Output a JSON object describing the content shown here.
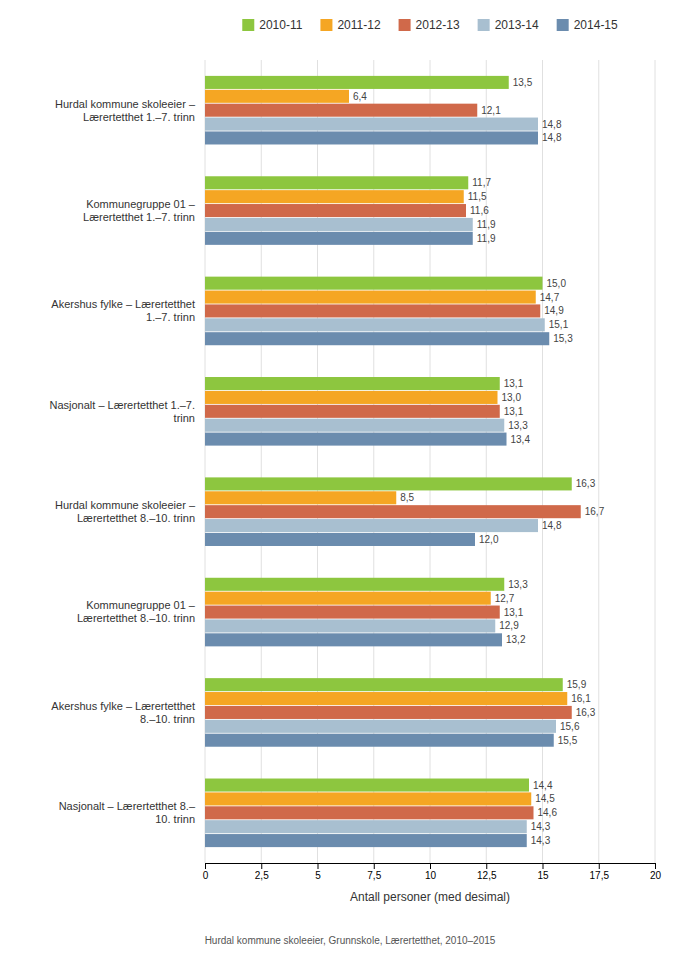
{
  "chart_data": {
    "type": "bar",
    "orientation": "horizontal",
    "categories": [
      "Hurdal kommune skoleeier –\nLærertetthet 1.–7. trinn",
      "Kommunegruppe 01 –\nLærertetthet 1.–7. trinn",
      "Akershus fylke – Lærertetthet\n1.–7. trinn",
      "Nasjonalt – Lærertetthet 1.–7.\ntrinn",
      "Hurdal kommune skoleeier –\nLærertetthet 8.–10. trinn",
      "Kommunegruppe 01 –\nLærertetthet 8.–10. trinn",
      "Akershus fylke – Lærertetthet\n8.–10. trinn",
      "Nasjonalt – Lærertetthet 8.–\n10. trinn"
    ],
    "series": [
      {
        "name": "2010-11",
        "color": "#8DC63F",
        "values": [
          13.5,
          11.7,
          15.0,
          13.1,
          16.3,
          13.3,
          15.9,
          14.4
        ],
        "value_labels": [
          "13,5",
          "11,7",
          "15,0",
          "13,1",
          "16,3",
          "13,3",
          "15,9",
          "14,4"
        ]
      },
      {
        "name": "2011-12",
        "color": "#F5A623",
        "values": [
          6.4,
          11.5,
          14.7,
          13.0,
          8.5,
          12.7,
          16.1,
          14.5
        ],
        "value_labels": [
          "6,4",
          "11,5",
          "14,7",
          "13,0",
          "8,5",
          "12,7",
          "16,1",
          "14,5"
        ]
      },
      {
        "name": "2012-13",
        "color": "#D0694A",
        "values": [
          12.1,
          11.6,
          14.9,
          13.1,
          16.7,
          13.1,
          16.3,
          14.6
        ],
        "value_labels": [
          "12,1",
          "11,6",
          "14,9",
          "13,1",
          "16,7",
          "13,1",
          "16,3",
          "14,6"
        ]
      },
      {
        "name": "2013-14",
        "color": "#A8BFD0",
        "values": [
          14.8,
          11.9,
          15.1,
          13.3,
          14.8,
          12.9,
          15.6,
          14.3
        ],
        "value_labels": [
          "14,8",
          "11,9",
          "15,1",
          "13,3",
          "14,8",
          "12,9",
          "15,6",
          "14,3"
        ]
      },
      {
        "name": "2014-15",
        "color": "#6B8CAE",
        "values": [
          14.8,
          11.9,
          15.3,
          13.4,
          12.0,
          13.2,
          15.5,
          14.3
        ],
        "value_labels": [
          "14,8",
          "11,9",
          "15,3",
          "13,4",
          "12,0",
          "13,2",
          "15,5",
          "14,3"
        ]
      }
    ],
    "xlabel": "Antall personer (med desimal)",
    "xlim": [
      0,
      20
    ],
    "xticks": [
      0,
      {
        "value": 2.5,
        "label": "2,5"
      },
      5,
      {
        "value": 7.5,
        "label": "7,5"
      },
      10,
      {
        "value": 12.5,
        "label": "12,5"
      },
      15,
      {
        "value": 17.5,
        "label": "17,5"
      },
      20
    ],
    "grid": true,
    "legend": "top",
    "data_labels": true,
    "annotations": [
      "Hurdal kommune skoleeier, Grunnskole, Lærertetthet, 2010–2015"
    ]
  }
}
